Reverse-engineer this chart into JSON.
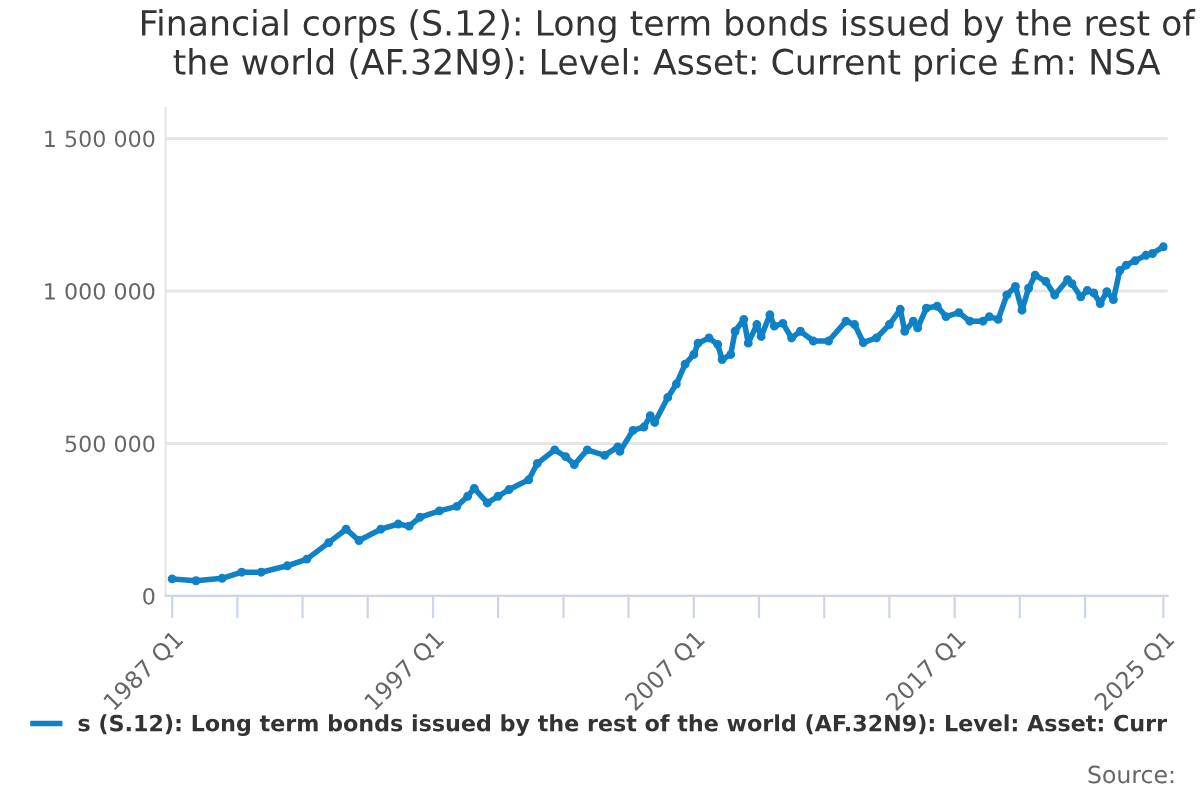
{
  "chart_data": {
    "type": "line",
    "title": "Financial corps (S.12): Long term bonds issued by the rest of the world (AF.32N9): Level: Asset: Current price £m: NSA",
    "x": [
      "1987-01",
      "1987-12",
      "1988-12",
      "1989-09",
      "1990-06",
      "1991-06",
      "1992-03",
      "1993-01",
      "1993-09",
      "1994-03",
      "1995-01",
      "1995-09",
      "1996-02",
      "1996-07",
      "1997-04",
      "1997-12",
      "1998-05",
      "1998-08",
      "1999-02",
      "1999-07",
      "1999-12",
      "2000-09",
      "2001-01",
      "2001-09",
      "2002-02",
      "2002-06",
      "2002-12",
      "2003-08",
      "2004-02",
      "2004-03",
      "2004-09",
      "2005-02",
      "2005-05",
      "2005-07",
      "2006-01",
      "2006-05",
      "2006-09",
      "2007-01",
      "2007-03",
      "2007-08",
      "2007-12",
      "2008-02",
      "2008-06",
      "2008-08",
      "2008-12",
      "2009-02",
      "2009-06",
      "2009-08",
      "2009-12",
      "2010-02",
      "2010-06",
      "2010-10",
      "2011-02",
      "2011-08",
      "2012-03",
      "2012-11",
      "2013-03",
      "2013-07",
      "2014-01",
      "2014-07",
      "2014-12",
      "2015-02",
      "2015-06",
      "2015-08",
      "2015-12",
      "2016-05",
      "2016-09",
      "2017-03",
      "2017-08",
      "2018-02",
      "2018-05",
      "2018-09",
      "2019-01",
      "2019-05",
      "2019-08",
      "2019-11",
      "2020-02",
      "2020-07",
      "2020-11",
      "2021-05",
      "2021-07",
      "2021-11",
      "2022-02",
      "2022-05",
      "2022-08",
      "2022-11",
      "2023-02",
      "2023-05",
      "2023-08",
      "2023-12",
      "2024-05",
      "2024-08",
      "2025-01"
    ],
    "series": [
      {
        "name": "s (S.12): Long term bonds issued by the rest of the world (AF.32N9): Level: Asset: Curr",
        "color": "#0f81c6",
        "values": [
          56000,
          50000,
          58000,
          78000,
          78000,
          99000,
          121000,
          175000,
          219000,
          182000,
          219000,
          236000,
          229000,
          258000,
          279000,
          294000,
          327000,
          353000,
          305000,
          327000,
          349000,
          381000,
          435000,
          479000,
          457000,
          431000,
          479000,
          461000,
          489000,
          474000,
          543000,
          554000,
          591000,
          569000,
          651000,
          695000,
          760000,
          792000,
          829000,
          846000,
          825000,
          775000,
          792000,
          868000,
          907000,
          829000,
          890000,
          851000,
          922000,
          885000,
          894000,
          846000,
          868000,
          836000,
          836000,
          901000,
          890000,
          831000,
          846000,
          890000,
          940000,
          868000,
          901000,
          879000,
          944000,
          950000,
          916000,
          929000,
          901000,
          901000,
          916000,
          907000,
          987000,
          1015000,
          937000,
          1009000,
          1052000,
          1031000,
          987000,
          1037000,
          1024000,
          981000,
          1002000,
          994000,
          959000,
          998000,
          972000,
          1067000,
          1085000,
          1099000,
          1117000,
          1123000,
          1145000
        ]
      }
    ],
    "xlim": [
      "1986-10",
      "2025-03"
    ],
    "xticks": [
      {
        "value": "1987-01",
        "label": "1987 Q1"
      },
      {
        "value": "1989-07",
        "label": null
      },
      {
        "value": "1992-01",
        "label": null
      },
      {
        "value": "1994-07",
        "label": null
      },
      {
        "value": "1997-01",
        "label": "1997 Q1"
      },
      {
        "value": "1999-07",
        "label": null
      },
      {
        "value": "2002-01",
        "label": null
      },
      {
        "value": "2004-07",
        "label": null
      },
      {
        "value": "2007-01",
        "label": "2007 Q1"
      },
      {
        "value": "2009-07",
        "label": null
      },
      {
        "value": "2012-01",
        "label": null
      },
      {
        "value": "2014-07",
        "label": null
      },
      {
        "value": "2017-01",
        "label": "2017 Q1"
      },
      {
        "value": "2019-07",
        "label": null
      },
      {
        "value": "2022-01",
        "label": null
      },
      {
        "value": "2025-01",
        "label": "2025 Q1"
      }
    ],
    "ylim": [
      0,
      1600000
    ],
    "yticks": [
      {
        "value": 0,
        "label": "0"
      },
      {
        "value": 500000,
        "label": "500 000"
      },
      {
        "value": 1000000,
        "label": "1 000 000"
      },
      {
        "value": 1500000,
        "label": "1 500 000"
      }
    ],
    "grid": "y",
    "legend": "bottom",
    "marker": "circle",
    "line_style": "solid",
    "annotations": [
      "Source:"
    ]
  }
}
